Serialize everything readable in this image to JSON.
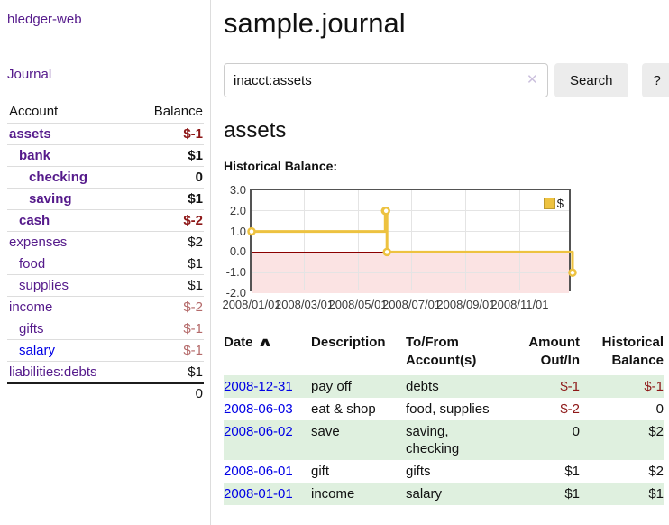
{
  "app": {
    "title": "hledger-web"
  },
  "colors": {
    "link_visited_purple": "#551a8b",
    "link_blue": "#0000e6",
    "negative_strong": "#8d1717",
    "negative_muted": "#b46a6a",
    "row_highlight_green": "#dff0df",
    "chart_line_yellow": "#edc240",
    "chart_negative_region_pink": "#fbe3e3",
    "chart_zero_line_red": "#8b0000",
    "chart_border_gray": "#545454"
  },
  "sidebar": {
    "journal_link": "Journal",
    "accounts_table": {
      "headers": {
        "account": "Account",
        "balance": "Balance"
      },
      "rows": [
        {
          "name": "assets",
          "indent": 0,
          "bold": true,
          "balance": "$-1",
          "neg": "strong"
        },
        {
          "name": "bank",
          "indent": 1,
          "bold": true,
          "balance": "$1",
          "neg": null
        },
        {
          "name": "checking",
          "indent": 2,
          "bold": true,
          "balance": "0",
          "neg": null
        },
        {
          "name": "saving",
          "indent": 2,
          "bold": true,
          "balance": "$1",
          "neg": null
        },
        {
          "name": "cash",
          "indent": 1,
          "bold": true,
          "balance": "$-2",
          "neg": "strong"
        },
        {
          "name": "expenses",
          "indent": 0,
          "bold": false,
          "balance": "$2",
          "neg": null
        },
        {
          "name": "food",
          "indent": 1,
          "bold": false,
          "balance": "$1",
          "neg": null
        },
        {
          "name": "supplies",
          "indent": 1,
          "bold": false,
          "balance": "$1",
          "neg": null
        },
        {
          "name": "income",
          "indent": 0,
          "bold": false,
          "balance": "$-2",
          "neg": "muted"
        },
        {
          "name": "gifts",
          "indent": 1,
          "bold": false,
          "balance": "$-1",
          "neg": "muted"
        },
        {
          "name": "salary",
          "indent": 1,
          "bold": false,
          "balance": "$-1",
          "neg": "muted",
          "blue": true
        },
        {
          "name": "liabilities:debts",
          "indent": 0,
          "bold": false,
          "balance": "$1",
          "neg": null
        }
      ],
      "total": "0"
    }
  },
  "main": {
    "page_title": "sample.journal",
    "search": {
      "value": "inacct:assets",
      "clear_icon": "✕",
      "button_label": "Search",
      "help_label": "?"
    },
    "account_heading": "assets",
    "chart_label": "Historical Balance:"
  },
  "chart_data": {
    "type": "line",
    "title": "Historical Balance",
    "step": true,
    "series": [
      {
        "name": "$",
        "color": "#edc240",
        "points": [
          [
            "2008-01-01",
            1
          ],
          [
            "2008-06-01",
            2
          ],
          [
            "2008-06-02",
            2
          ],
          [
            "2008-06-03",
            0
          ],
          [
            "2008-12-31",
            -1
          ]
        ]
      }
    ],
    "xlim": [
      "2008-01-01",
      "2008-12-31"
    ],
    "ylim": [
      -2,
      3
    ],
    "x_ticks": [
      {
        "date": "2008-01-01",
        "label": "2008/01/01"
      },
      {
        "date": "2008-03-01",
        "label": "2008/03/01"
      },
      {
        "date": "2008-05-01",
        "label": "2008/05/01"
      },
      {
        "date": "2008-07-01",
        "label": "2008/07/01"
      },
      {
        "date": "2008-09-01",
        "label": "2008/09/01"
      },
      {
        "date": "2008-11-01",
        "label": "2008/11/01"
      }
    ],
    "y_ticks": [
      {
        "value": 3,
        "label": "3.0"
      },
      {
        "value": 2,
        "label": "2.0"
      },
      {
        "value": 1,
        "label": "1.0"
      },
      {
        "value": 0,
        "label": "0.0"
      },
      {
        "value": -1,
        "label": "-1.0"
      },
      {
        "value": -2,
        "label": "-2.0"
      }
    ],
    "grid": true,
    "legend": {
      "label": "$",
      "position": "top-right"
    },
    "negative_region_color": "#fbe3e3",
    "zero_line_color": "#8b0000"
  },
  "register_table": {
    "sort_icon": "∧",
    "headers": {
      "date": "Date",
      "description": "Description",
      "accounts_line1": "To/From",
      "accounts_line2": "Account(s)",
      "amount_line1": "Amount",
      "amount_line2": "Out/In",
      "balance_line1": "Historical",
      "balance_line2": "Balance"
    },
    "rows": [
      {
        "date": "2008-12-31",
        "description": "pay off",
        "accounts": "debts",
        "amount": "$-1",
        "amount_neg": true,
        "balance": "$-1",
        "balance_neg": true
      },
      {
        "date": "2008-06-03",
        "description": "eat & shop",
        "accounts": "food, supplies",
        "amount": "$-2",
        "amount_neg": true,
        "balance": "0",
        "balance_neg": false
      },
      {
        "date": "2008-06-02",
        "description": "save",
        "accounts": "saving, checking",
        "amount": "0",
        "amount_neg": false,
        "balance": "$2",
        "balance_neg": false
      },
      {
        "date": "2008-06-01",
        "description": "gift",
        "accounts": "gifts",
        "amount": "$1",
        "amount_neg": false,
        "balance": "$2",
        "balance_neg": false
      },
      {
        "date": "2008-01-01",
        "description": "income",
        "accounts": "salary",
        "amount": "$1",
        "amount_neg": false,
        "balance": "$1",
        "balance_neg": false
      }
    ]
  }
}
